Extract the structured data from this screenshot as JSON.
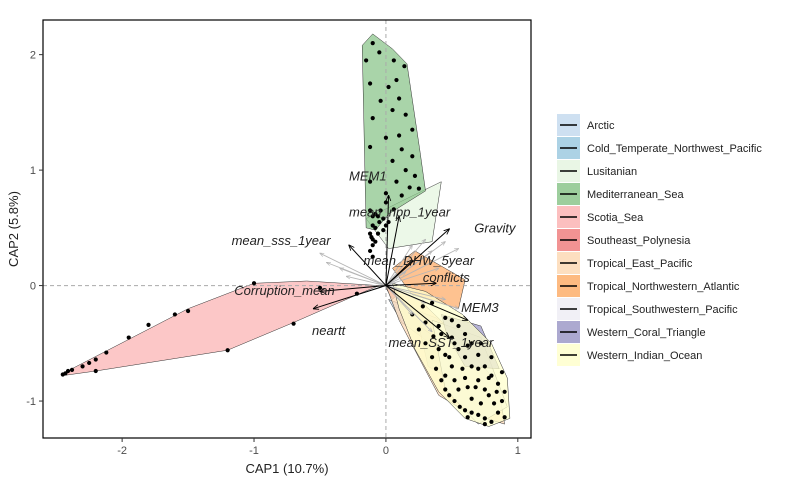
{
  "chart_data": {
    "type": "scatter",
    "xlabel": "CAP1 (10.7%)",
    "ylabel": "CAP2 (5.8%)",
    "xlim": [
      -2.6,
      1.1
    ],
    "ylim": [
      -1.32,
      2.3
    ],
    "x_ticks": [
      "-2",
      "-1",
      "0",
      "1"
    ],
    "y_ticks": [
      "-1",
      "0",
      "1",
      "2"
    ],
    "reference_lines": {
      "x": 0,
      "y": 0
    },
    "grid": false,
    "legend_position": "right",
    "series": [
      {
        "name": "Arctic",
        "color": "#c6dbef",
        "hull": [
          [
            0.02,
            -0.12
          ],
          [
            0.38,
            -0.28
          ],
          [
            0.52,
            -0.42
          ],
          [
            0.36,
            -0.52
          ],
          [
            0.12,
            -0.32
          ]
        ],
        "points": []
      },
      {
        "name": "Cold_Temperate_Northwest_Pacific",
        "color": "#9ecae1",
        "hull": [
          [
            0.25,
            -0.35
          ],
          [
            0.6,
            -0.62
          ],
          [
            0.55,
            -0.85
          ],
          [
            0.32,
            -0.7
          ]
        ],
        "points": []
      },
      {
        "name": "Lusitanian",
        "color": "#e5f5e0",
        "hull": [
          [
            -0.15,
            0.58
          ],
          [
            0.42,
            0.9
          ],
          [
            0.35,
            0.38
          ],
          [
            0.02,
            0.32
          ]
        ],
        "points": []
      },
      {
        "name": "Mediterranean_Sea",
        "color": "#8cc68c",
        "hull": [
          [
            -0.18,
            2.08
          ],
          [
            -0.1,
            2.18
          ],
          [
            0.05,
            2.05
          ],
          [
            0.16,
            1.92
          ],
          [
            0.26,
            1.15
          ],
          [
            0.3,
            0.82
          ],
          [
            0.02,
            0.62
          ],
          [
            -0.08,
            0.48
          ],
          [
            -0.15,
            0.5
          ]
        ],
        "points": [
          [
            -0.15,
            1.95
          ],
          [
            -0.1,
            2.1
          ],
          [
            -0.05,
            2.02
          ],
          [
            0.06,
            1.95
          ],
          [
            0.14,
            1.9
          ],
          [
            0.08,
            1.78
          ],
          [
            0.02,
            1.72
          ],
          [
            0.1,
            1.62
          ],
          [
            -0.04,
            1.6
          ],
          [
            0.05,
            1.52
          ],
          [
            0.15,
            1.48
          ],
          [
            0.2,
            1.35
          ],
          [
            0.1,
            1.3
          ],
          [
            0.0,
            1.28
          ],
          [
            0.12,
            1.18
          ],
          [
            0.2,
            1.12
          ],
          [
            0.05,
            1.08
          ],
          [
            0.15,
            1.0
          ],
          [
            0.22,
            0.95
          ],
          [
            0.08,
            0.9
          ],
          [
            0.18,
            0.85
          ],
          [
            0.25,
            0.84
          ],
          [
            0.0,
            0.8
          ],
          [
            0.12,
            0.78
          ],
          [
            -0.12,
            0.9
          ],
          [
            -0.12,
            1.2
          ],
          [
            -0.1,
            1.45
          ],
          [
            0.0,
            0.72
          ],
          [
            0.06,
            0.66
          ],
          [
            -0.12,
            1.75
          ]
        ]
      },
      {
        "name": "Scotia_Sea",
        "color": "#fbb4b4",
        "hull": [
          [
            -2.45,
            -0.78
          ],
          [
            -2.38,
            -0.72
          ],
          [
            -1.5,
            -0.2
          ],
          [
            -1.0,
            0.02
          ],
          [
            -0.6,
            0.04
          ],
          [
            -0.05,
            0.0
          ],
          [
            -0.18,
            -0.06
          ],
          [
            -0.7,
            -0.32
          ],
          [
            -1.2,
            -0.56
          ],
          [
            -2.2,
            -0.74
          ]
        ],
        "points": [
          [
            -2.45,
            -0.77
          ],
          [
            -2.43,
            -0.76
          ],
          [
            -2.41,
            -0.74
          ],
          [
            -2.38,
            -0.73
          ],
          [
            -2.3,
            -0.7
          ],
          [
            -2.25,
            -0.67
          ],
          [
            -2.2,
            -0.64
          ],
          [
            -2.12,
            -0.58
          ],
          [
            -1.95,
            -0.45
          ],
          [
            -1.8,
            -0.34
          ],
          [
            -1.6,
            -0.25
          ],
          [
            -1.5,
            -0.22
          ],
          [
            -2.2,
            -0.74
          ],
          [
            -1.2,
            -0.56
          ],
          [
            -0.7,
            -0.33
          ],
          [
            -0.22,
            -0.07
          ],
          [
            -0.5,
            -0.02
          ],
          [
            -1.0,
            0.02
          ]
        ]
      },
      {
        "name": "Southeast_Polynesia",
        "color": "#f08080",
        "hull": [
          [
            0.0,
            -0.02
          ],
          [
            0.1,
            -0.06
          ],
          [
            0.05,
            -0.12
          ]
        ],
        "points": []
      },
      {
        "name": "Tropical_East_Pacific",
        "color": "#fdd9b5",
        "hull": [
          [
            0.0,
            0.0
          ],
          [
            0.1,
            -0.3
          ],
          [
            0.4,
            -0.95
          ],
          [
            0.62,
            -1.1
          ],
          [
            0.9,
            -1.2
          ],
          [
            0.85,
            -0.85
          ],
          [
            0.55,
            -0.45
          ],
          [
            0.25,
            -0.12
          ]
        ],
        "points": []
      },
      {
        "name": "Tropical_Northwestern_Atlantic",
        "color": "#fdae6b",
        "hull": [
          [
            0.05,
            0.15
          ],
          [
            0.22,
            0.3
          ],
          [
            0.6,
            0.05
          ],
          [
            0.55,
            -0.2
          ],
          [
            0.2,
            -0.08
          ]
        ],
        "points": []
      },
      {
        "name": "Tropical_Southwestern_Pacific",
        "color": "#efedf5",
        "hull": [
          [
            0.35,
            -0.3
          ],
          [
            0.72,
            -0.45
          ],
          [
            0.92,
            -1.05
          ],
          [
            0.7,
            -1.2
          ],
          [
            0.45,
            -0.9
          ]
        ],
        "points": []
      },
      {
        "name": "Western_Coral_Triangle",
        "color": "#9e9ac8",
        "hull": [
          [
            0.42,
            -0.25
          ],
          [
            0.72,
            -0.35
          ],
          [
            0.86,
            -0.72
          ],
          [
            0.6,
            -0.7
          ],
          [
            0.46,
            -0.42
          ]
        ],
        "points": []
      },
      {
        "name": "Western_Indian_Ocean",
        "color": "#ffffcc",
        "hull": [
          [
            0.05,
            0.02
          ],
          [
            0.1,
            -0.2
          ],
          [
            0.22,
            -0.55
          ],
          [
            0.4,
            -0.92
          ],
          [
            0.6,
            -1.15
          ],
          [
            0.78,
            -1.22
          ],
          [
            0.94,
            -1.15
          ],
          [
            0.92,
            -0.8
          ],
          [
            0.8,
            -0.5
          ],
          [
            0.58,
            -0.25
          ],
          [
            0.3,
            -0.05
          ]
        ],
        "points": [
          [
            0.2,
            -0.25
          ],
          [
            0.25,
            -0.38
          ],
          [
            0.3,
            -0.5
          ],
          [
            0.35,
            -0.62
          ],
          [
            0.38,
            -0.72
          ],
          [
            0.42,
            -0.82
          ],
          [
            0.45,
            -0.9
          ],
          [
            0.48,
            -0.95
          ],
          [
            0.52,
            -1.0
          ],
          [
            0.56,
            -1.05
          ],
          [
            0.6,
            -1.08
          ],
          [
            0.65,
            -1.1
          ],
          [
            0.7,
            -1.12
          ],
          [
            0.75,
            -1.15
          ],
          [
            0.8,
            -1.18
          ],
          [
            0.85,
            -1.1
          ],
          [
            0.88,
            -1.0
          ],
          [
            0.9,
            -0.92
          ],
          [
            0.85,
            -0.85
          ],
          [
            0.8,
            -0.78
          ],
          [
            0.75,
            -0.7
          ],
          [
            0.7,
            -0.6
          ],
          [
            0.65,
            -0.5
          ],
          [
            0.6,
            -0.42
          ],
          [
            0.55,
            -0.35
          ],
          [
            0.5,
            -0.3
          ],
          [
            0.45,
            -0.28
          ],
          [
            0.4,
            -0.35
          ],
          [
            0.5,
            -0.45
          ],
          [
            0.55,
            -0.55
          ],
          [
            0.6,
            -0.62
          ],
          [
            0.65,
            -0.7
          ],
          [
            0.7,
            -0.82
          ],
          [
            0.75,
            -0.9
          ],
          [
            0.6,
            -0.8
          ],
          [
            0.5,
            -0.7
          ],
          [
            0.45,
            -0.6
          ],
          [
            0.4,
            -0.55
          ],
          [
            0.55,
            -0.9
          ],
          [
            0.65,
            -0.98
          ],
          [
            0.72,
            -1.02
          ],
          [
            0.82,
            -1.02
          ],
          [
            0.78,
            -0.95
          ],
          [
            0.68,
            -0.88
          ],
          [
            0.58,
            -0.72
          ],
          [
            0.48,
            -0.62
          ],
          [
            0.62,
            -0.52
          ],
          [
            0.72,
            -0.5
          ],
          [
            0.8,
            -0.62
          ],
          [
            0.88,
            -0.75
          ],
          [
            0.3,
            -0.32
          ],
          [
            0.28,
            -0.18
          ],
          [
            0.35,
            -0.15
          ],
          [
            0.42,
            -0.42
          ],
          [
            0.52,
            -0.5
          ],
          [
            0.62,
            -0.88
          ],
          [
            0.52,
            -0.82
          ],
          [
            0.7,
            -0.72
          ],
          [
            0.78,
            -0.8
          ],
          [
            0.84,
            -0.92
          ],
          [
            0.9,
            -1.14
          ],
          [
            0.75,
            -1.2
          ],
          [
            0.62,
            -1.14
          ],
          [
            0.45,
            -0.78
          ],
          [
            0.36,
            -0.44
          ]
        ]
      }
    ],
    "extra_points": [
      [
        -0.12,
        0.3
      ],
      [
        -0.1,
        0.35
      ],
      [
        -0.1,
        0.4
      ],
      [
        -0.12,
        0.45
      ],
      [
        -0.08,
        0.5
      ],
      [
        -0.05,
        0.55
      ],
      [
        -0.1,
        0.6
      ],
      [
        -0.08,
        0.62
      ],
      [
        -0.12,
        0.65
      ],
      [
        -0.06,
        0.6
      ],
      [
        -0.02,
        0.58
      ],
      [
        -0.1,
        0.52
      ],
      [
        -0.11,
        0.42
      ],
      [
        -0.06,
        0.45
      ],
      [
        -0.02,
        0.48
      ],
      [
        0.0,
        0.52
      ],
      [
        -0.1,
        0.25
      ],
      [
        -0.08,
        0.38
      ],
      [
        0.02,
        0.55
      ],
      [
        -0.04,
        0.65
      ]
    ],
    "vectors": [
      {
        "label": "MEM1",
        "x": 0.02,
        "y": 0.78,
        "tx": -0.28,
        "ty": 0.91
      },
      {
        "label": "mean_npp_1year",
        "x": 0.1,
        "y": 0.6,
        "tx": -0.28,
        "ty": 0.6
      },
      {
        "label": "mean_sss_1year",
        "x": -0.28,
        "y": 0.35,
        "tx": -1.17,
        "ty": 0.35
      },
      {
        "label": "Gravity",
        "x": 0.48,
        "y": 0.49,
        "tx": 0.67,
        "ty": 0.46
      },
      {
        "label": "mean_DHW_5year",
        "x": 0.2,
        "y": 0.22,
        "tx": -0.17,
        "ty": 0.18
      },
      {
        "label": "conflicts",
        "x": 0.38,
        "y": 0.02,
        "tx": 0.28,
        "ty": 0.03
      },
      {
        "label": "Corruption_mean",
        "x": -0.5,
        "y": -0.05,
        "tx": -1.15,
        "ty": -0.08
      },
      {
        "label": "neartt",
        "x": -0.55,
        "y": -0.2,
        "tx": -0.56,
        "ty": -0.43
      },
      {
        "label": "MEM3",
        "x": 0.62,
        "y": -0.3,
        "tx": 0.57,
        "ty": -0.23
      },
      {
        "label": "mean_SST_1year",
        "x": 0.48,
        "y": -0.45,
        "tx": 0.02,
        "ty": -0.53
      }
    ],
    "faint_vectors": [
      [
        -0.5,
        0.28
      ],
      [
        -0.45,
        0.2
      ],
      [
        -0.35,
        0.15
      ],
      [
        -0.3,
        0.08
      ],
      [
        0.2,
        0.35
      ],
      [
        0.3,
        0.4
      ],
      [
        0.45,
        0.38
      ],
      [
        0.35,
        0.3
      ],
      [
        0.55,
        0.32
      ],
      [
        0.15,
        0.12
      ],
      [
        0.4,
        0.15
      ],
      [
        0.3,
        -0.15
      ],
      [
        0.45,
        -0.12
      ],
      [
        0.55,
        -0.2
      ],
      [
        0.2,
        -0.25
      ],
      [
        0.35,
        -0.4
      ]
    ]
  }
}
